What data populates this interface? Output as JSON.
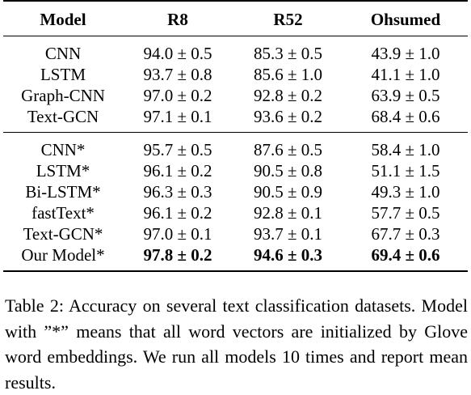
{
  "table": {
    "headers": [
      "Model",
      "R8",
      "R52",
      "Ohsumed"
    ],
    "group1": [
      {
        "model": "CNN",
        "r8": "94.0 ± 0.5",
        "r52": "85.3 ± 0.5",
        "ohsumed": "43.9 ± 1.0"
      },
      {
        "model": "LSTM",
        "r8": "93.7 ± 0.8",
        "r52": "85.6 ± 1.0",
        "ohsumed": "41.1 ± 1.0"
      },
      {
        "model": "Graph-CNN",
        "r8": "97.0 ± 0.2",
        "r52": "92.8 ± 0.2",
        "ohsumed": "63.9 ± 0.5"
      },
      {
        "model": "Text-GCN",
        "r8": "97.1 ± 0.1",
        "r52": "93.6 ± 0.2",
        "ohsumed": "68.4 ± 0.6"
      }
    ],
    "group2": [
      {
        "model": "CNN*",
        "r8": "95.7 ± 0.5",
        "r52": "87.6 ± 0.5",
        "ohsumed": "58.4 ± 1.0"
      },
      {
        "model": "LSTM*",
        "r8": "96.1 ± 0.2",
        "r52": "90.5 ± 0.8",
        "ohsumed": "51.1 ± 1.5"
      },
      {
        "model": "Bi-LSTM*",
        "r8": "96.3 ± 0.3",
        "r52": "90.5 ± 0.9",
        "ohsumed": "49.3 ± 1.0"
      },
      {
        "model": "fastText*",
        "r8": "96.1 ± 0.2",
        "r52": "92.8 ± 0.1",
        "ohsumed": "57.7 ± 0.5"
      },
      {
        "model": "Text-GCN*",
        "r8": "97.0 ± 0.1",
        "r52": "93.7 ± 0.1",
        "ohsumed": "67.7 ± 0.3"
      },
      {
        "model": "Our Model*",
        "r8": "97.8 ± 0.2",
        "r52": "94.6 ± 0.3",
        "ohsumed": "69.4 ± 0.6"
      }
    ]
  },
  "caption": "Table 2:   Accuracy on several text classification datasets. Model with ”*” means that all word vectors are initialized by Glove word embeddings. We run all models 10 times and report mean results."
}
